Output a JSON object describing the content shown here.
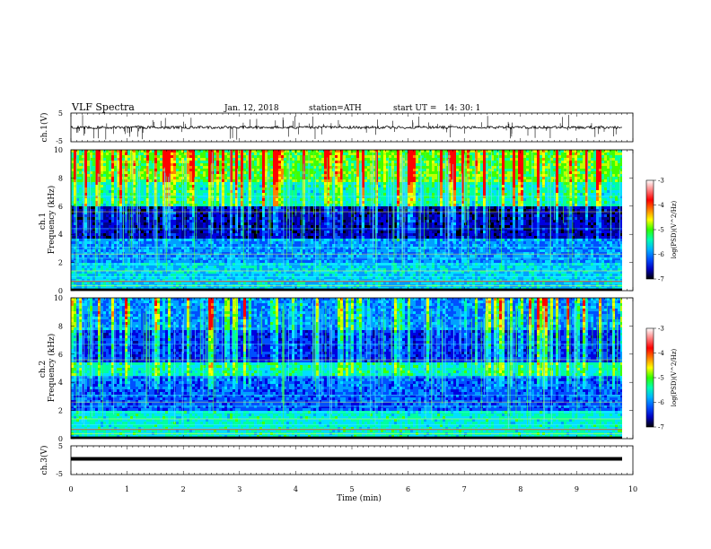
{
  "header": {
    "title": "VLF Spectra",
    "date": "Jan. 12, 2018",
    "station": "station=ATH",
    "start": "start UT =   14: 30: 1"
  },
  "chart_data": [
    {
      "type": "line",
      "ylabel": "ch.1(V)",
      "ylim": [
        -5,
        5
      ],
      "yticks": [
        "5",
        "-5"
      ],
      "baseline": 0,
      "color": "#000000"
    },
    {
      "type": "heatmap",
      "ylabel": "ch.1\nFrequency (kHz)",
      "ylim": [
        0,
        10
      ],
      "yticks": [
        "0",
        "2",
        "4",
        "6",
        "8",
        "10"
      ],
      "colorbar": {
        "label": "log(PSD)(V^2/Hz)",
        "range": [
          -7,
          -3
        ],
        "ticks": [
          "-3",
          "-4",
          "-5",
          "-6",
          "-7"
        ],
        "colors": [
          "#000000",
          "#0000c0",
          "#0050ff",
          "#00b4ff",
          "#00ffb0",
          "#30ff00",
          "#ffff00",
          "#ff8000",
          "#ff0000",
          "#ff8080",
          "#ffffff"
        ]
      }
    },
    {
      "type": "heatmap",
      "ylabel": "ch.2\nFrequency (kHz)",
      "ylim": [
        0,
        10
      ],
      "yticks": [
        "0",
        "2",
        "4",
        "6",
        "8",
        "10"
      ],
      "colorbar": {
        "label": "log(PSD)(V^2/Hz)",
        "range": [
          -7,
          -3
        ],
        "ticks": [
          "-3",
          "-4",
          "-5",
          "-6",
          "-7"
        ],
        "colors": [
          "#000000",
          "#0000c0",
          "#0050ff",
          "#00b4ff",
          "#00ffb0",
          "#30ff00",
          "#ffff00",
          "#ff8000",
          "#ff0000",
          "#ff8080",
          "#ffffff"
        ]
      }
    },
    {
      "type": "line",
      "ylabel": "ch.3(V)",
      "ylim": [
        -5,
        5
      ],
      "yticks": [
        "5",
        "-5"
      ],
      "baseline": 0,
      "color": "#000000"
    }
  ],
  "xaxis": {
    "label": "Time (min)",
    "range": [
      0,
      10
    ],
    "ticks": [
      "0",
      "1",
      "2",
      "3",
      "4",
      "5",
      "6",
      "7",
      "8",
      "9",
      "10"
    ]
  }
}
